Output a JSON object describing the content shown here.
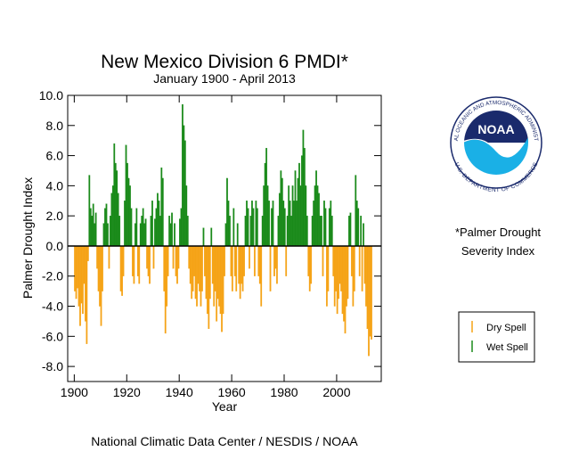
{
  "chart_data": {
    "type": "bar",
    "title": "New Mexico Division 6 PMDI*",
    "subtitle": "January 1900 - April 2013",
    "ylabel": "Palmer Drought Index",
    "xlabel": "Year",
    "footer": "National Climatic Data Center / NESDIS / NOAA",
    "note": [
      "*Palmer Drought",
      "Severity Index"
    ],
    "logo": {
      "text": "NOAA",
      "top_text": "NATIONAL OCEANIC AND ATMOSPHERIC ADMINISTRATION",
      "bottom_text": "U.S. DEPARTMENT OF COMMERCE"
    },
    "legend": [
      {
        "name": "Dry Spell",
        "color": "#f5a316"
      },
      {
        "name": "Wet Spell",
        "color": "#1a8a1a"
      }
    ],
    "xlim": [
      1897.5,
      2017
    ],
    "ylim": [
      -9,
      10
    ],
    "xticks": [
      1900,
      1920,
      1940,
      1960,
      1980,
      2000
    ],
    "yticks": [
      {
        "value": 10,
        "label": "10.0"
      },
      {
        "value": 8,
        "label": "8.0"
      },
      {
        "value": 6,
        "label": "6.0"
      },
      {
        "value": 4,
        "label": "4.0"
      },
      {
        "value": 2,
        "label": "2.0"
      },
      {
        "value": 0,
        "label": "0.0"
      },
      {
        "value": -2,
        "label": "-2.0"
      },
      {
        "value": -4,
        "label": "-4.0"
      },
      {
        "value": -6,
        "label": "-6.0"
      },
      {
        "value": -8,
        "label": "-8.0"
      }
    ],
    "x": [
      1900,
      1900.5,
      1901,
      1901.5,
      1902,
      1902.5,
      1903,
      1903.5,
      1904,
      1904.5,
      1905,
      1905.5,
      1906,
      1906.5,
      1907,
      1907.5,
      1908,
      1908.5,
      1909,
      1909.5,
      1910,
      1910.5,
      1911,
      1911.5,
      1912,
      1912.5,
      1913,
      1913.5,
      1914,
      1914.5,
      1915,
      1915.5,
      1916,
      1916.5,
      1917,
      1917.5,
      1918,
      1918.5,
      1919,
      1919.5,
      1920,
      1920.5,
      1921,
      1921.5,
      1922,
      1922.5,
      1923,
      1923.5,
      1924,
      1924.5,
      1925,
      1925.5,
      1926,
      1926.5,
      1927,
      1927.5,
      1928,
      1928.5,
      1929,
      1929.5,
      1930,
      1930.5,
      1931,
      1931.5,
      1932,
      1932.5,
      1933,
      1933.5,
      1934,
      1934.5,
      1935,
      1935.5,
      1936,
      1936.5,
      1937,
      1937.5,
      1938,
      1938.5,
      1939,
      1939.5,
      1940,
      1940.5,
      1941,
      1941.5,
      1942,
      1942.5,
      1943,
      1943.5,
      1944,
      1944.5,
      1945,
      1945.5,
      1946,
      1946.5,
      1947,
      1947.5,
      1948,
      1948.5,
      1949,
      1949.5,
      1950,
      1950.5,
      1951,
      1951.5,
      1952,
      1952.5,
      1953,
      1953.5,
      1954,
      1954.5,
      1955,
      1955.5,
      1956,
      1956.5,
      1957,
      1957.5,
      1958,
      1958.5,
      1959,
      1959.5,
      1960,
      1960.5,
      1961,
      1961.5,
      1962,
      1962.5,
      1963,
      1963.5,
      1964,
      1964.5,
      1965,
      1965.5,
      1966,
      1966.5,
      1967,
      1967.5,
      1968,
      1968.5,
      1969,
      1969.5,
      1970,
      1970.5,
      1971,
      1971.5,
      1972,
      1972.5,
      1973,
      1973.5,
      1974,
      1974.5,
      1975,
      1975.5,
      1976,
      1976.5,
      1977,
      1977.5,
      1978,
      1978.5,
      1979,
      1979.5,
      1980,
      1980.5,
      1981,
      1981.5,
      1982,
      1982.5,
      1983,
      1983.5,
      1984,
      1984.5,
      1985,
      1985.5,
      1986,
      1986.5,
      1987,
      1987.5,
      1988,
      1988.5,
      1989,
      1989.5,
      1990,
      1990.5,
      1991,
      1991.5,
      1992,
      1992.5,
      1993,
      1993.5,
      1994,
      1994.5,
      1995,
      1995.5,
      1996,
      1996.5,
      1997,
      1997.5,
      1998,
      1998.5,
      1999,
      1999.5,
      2000,
      2000.5,
      2001,
      2001.5,
      2002,
      2002.5,
      2003,
      2003.5,
      2004,
      2004.5,
      2005,
      2005.5,
      2006,
      2006.5,
      2007,
      2007.5,
      2008,
      2008.5,
      2009,
      2009.5,
      2010,
      2010.5,
      2011,
      2011.5,
      2012,
      2012.5,
      2013
    ],
    "values": [
      -3.0,
      -3.5,
      -2.8,
      -4.0,
      -5.3,
      -3.8,
      -4.5,
      -2.5,
      -5.0,
      -6.5,
      -1.0,
      4.7,
      2.5,
      2.0,
      2.8,
      1.5,
      2.2,
      -1.5,
      -3.0,
      -4.0,
      -5.3,
      -3.0,
      1.5,
      2.5,
      2.8,
      1.5,
      -1.5,
      2.0,
      3.5,
      4.0,
      6.8,
      5.5,
      5.0,
      3.5,
      2.0,
      -3.0,
      -3.3,
      -2.0,
      3.0,
      6.7,
      5.5,
      4.5,
      4.0,
      2.5,
      -2.0,
      -2.5,
      1.5,
      2.5,
      -2.0,
      -2.5,
      1.5,
      2.0,
      2.5,
      1.5,
      1.8,
      -1.5,
      -2.0,
      -2.5,
      2.0,
      3.0,
      -1.5,
      1.8,
      2.5,
      3.5,
      3.0,
      2.0,
      5.2,
      4.5,
      -3.0,
      -5.8,
      -4.0,
      -2.0,
      2.0,
      1.5,
      2.2,
      -1.5,
      1.5,
      -2.0,
      -2.5,
      -1.5,
      1.8,
      2.5,
      9.4,
      8.0,
      7.0,
      4.0,
      2.0,
      -1.5,
      -2.5,
      -3.5,
      -3.0,
      -2.0,
      -3.5,
      -4.0,
      -2.5,
      -3.0,
      -4.0,
      -3.0,
      1.2,
      -2.0,
      -3.5,
      -4.5,
      -5.5,
      -3.5,
      1.2,
      -2.5,
      -4.0,
      -3.0,
      -5.0,
      -3.5,
      -4.0,
      -4.5,
      -5.7,
      -4.5,
      -2.0,
      1.5,
      4.5,
      3.0,
      2.0,
      -2.0,
      -3.0,
      2.5,
      -2.0,
      -3.0,
      1.5,
      -2.5,
      -3.5,
      -2.5,
      -3.0,
      -2.0,
      2.0,
      3.0,
      2.5,
      -1.5,
      2.0,
      3.0,
      2.5,
      -2.0,
      3.0,
      2.5,
      -2.0,
      -2.5,
      -4.0,
      2.0,
      4.0,
      5.5,
      6.5,
      4.0,
      3.0,
      -3.0,
      2.5,
      3.0,
      -2.0,
      -1.5,
      -2.5,
      2.0,
      3.5,
      5.0,
      4.5,
      3.0,
      2.5,
      -2.0,
      2.0,
      4.0,
      3.0,
      2.0,
      4.0,
      3.0,
      5.0,
      3.0,
      4.5,
      5.5,
      4.0,
      6.0,
      7.7,
      6.5,
      4.0,
      2.0,
      -2.0,
      -3.0,
      -2.5,
      2.0,
      3.0,
      4.0,
      5.0,
      4.0,
      3.5,
      2.0,
      2.0,
      -2.0,
      3.0,
      2.5,
      -4.0,
      -3.0,
      2.5,
      3.0,
      2.0,
      -2.0,
      -4.0,
      -3.0,
      -4.5,
      -3.5,
      -2.5,
      -3.0,
      -4.5,
      -5.0,
      -5.8,
      -4.0,
      -3.5,
      2.0,
      2.2,
      -2.0,
      -4.0,
      -3.0,
      4.7,
      3.0,
      2.5,
      -2.0,
      2.0,
      -3.0,
      1.5,
      -2.5,
      -4.0,
      -5.5,
      -7.3,
      -6.0,
      -6.2
    ]
  }
}
